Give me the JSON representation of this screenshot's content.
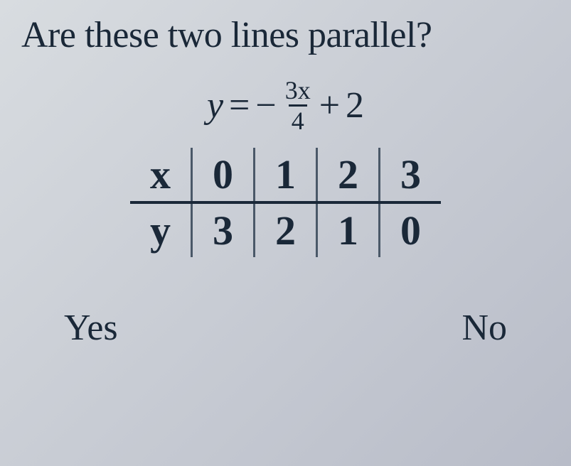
{
  "question": "Are these two lines parallel?",
  "equation": {
    "lhs_var": "y",
    "equals": "=",
    "minus": "−",
    "frac_num": "3x",
    "frac_den": "4",
    "plus": "+",
    "constant": "2"
  },
  "table": {
    "row1_label": "x",
    "row2_label": "y",
    "x_values": [
      "0",
      "1",
      "2",
      "3"
    ],
    "y_values": [
      "3",
      "2",
      "1",
      "0"
    ]
  },
  "answers": {
    "yes": "Yes",
    "no": "No"
  },
  "styling": {
    "background_gradient": [
      "#d8dce0",
      "#c8ccd4",
      "#b8bcc8"
    ],
    "text_color": "#1a2838",
    "border_color": "#4a5868",
    "question_fontsize": 52,
    "equation_fontsize": 52,
    "table_fontsize": 58,
    "answer_fontsize": 52,
    "font_family": "Georgia, Times New Roman, serif"
  }
}
